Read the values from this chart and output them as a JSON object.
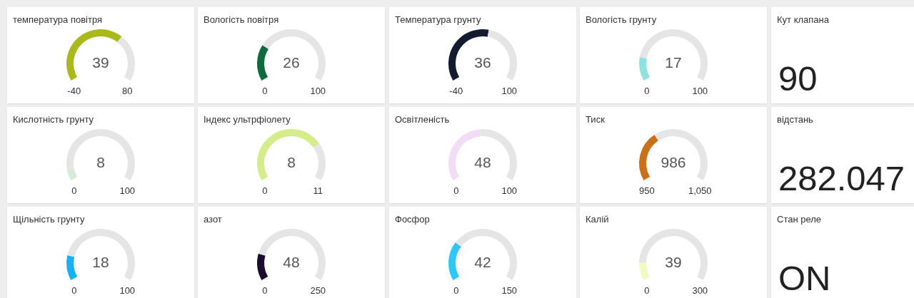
{
  "chart_data": [
    {
      "type": "donut",
      "title": "температура повітря",
      "categories": [
        null,
        null
      ],
      "values": [
        65.8,
        34.2
      ],
      "colors": [
        "#a9b91c",
        "#e5e5e5"
      ],
      "annotations": [
        "39",
        "-40",
        "80"
      ]
    },
    {
      "type": "donut",
      "title": "Вологість повітря",
      "categories": [
        null,
        null
      ],
      "values": [
        26,
        74
      ],
      "colors": [
        "#0e6b3b",
        "#e5e5e5"
      ],
      "annotations": [
        "26",
        "0",
        "100"
      ]
    },
    {
      "type": "donut",
      "title": "Температура грунту",
      "categories": [
        null,
        null
      ],
      "values": [
        54.3,
        45.7
      ],
      "colors": [
        "#141b2f",
        "#e5e5e5"
      ],
      "annotations": [
        "36",
        "-40",
        "100"
      ]
    },
    {
      "type": "donut",
      "title": "Вологість грунту",
      "categories": [
        null,
        null
      ],
      "values": [
        17,
        83
      ],
      "colors": [
        "#8fe0e0",
        "#e5e5e5"
      ],
      "annotations": [
        "17",
        "0",
        "100"
      ]
    },
    {
      "type": "other",
      "title": "Кут клапана",
      "annotations": [
        "90"
      ]
    },
    {
      "type": "donut",
      "title": "Кислотність грунту",
      "categories": [
        null,
        null
      ],
      "values": [
        8,
        92
      ],
      "colors": [
        "#d6ebd6",
        "#e5e5e5"
      ],
      "annotations": [
        "8",
        "0",
        "100"
      ]
    },
    {
      "type": "donut",
      "title": "Індекс ультрфіолету",
      "categories": [
        null,
        null
      ],
      "values": [
        72.7,
        27.3
      ],
      "colors": [
        "#d4ec8a",
        "#e5e5e5"
      ],
      "annotations": [
        "8",
        "0",
        "11"
      ]
    },
    {
      "type": "donut",
      "title": "Освітленість",
      "categories": [
        null,
        null
      ],
      "values": [
        48,
        52
      ],
      "colors": [
        "#f3ddf6",
        "#e5e5e5"
      ],
      "annotations": [
        "48",
        "0",
        "100"
      ]
    },
    {
      "type": "donut",
      "title": "Тиск",
      "categories": [
        null,
        null
      ],
      "values": [
        36,
        64
      ],
      "colors": [
        "#c8711a",
        "#e5e5e5"
      ],
      "annotations": [
        "986",
        "950",
        "1,050"
      ]
    },
    {
      "type": "other",
      "title": "відстань",
      "annotations": [
        "282.047"
      ]
    },
    {
      "type": "donut",
      "title": "Щільність грунту",
      "categories": [
        null,
        null
      ],
      "values": [
        18,
        82
      ],
      "colors": [
        "#14b2f2",
        "#e5e5e5"
      ],
      "annotations": [
        "18",
        "0",
        "100"
      ]
    },
    {
      "type": "donut",
      "title": "азот",
      "categories": [
        null,
        null
      ],
      "values": [
        19.2,
        80.8
      ],
      "colors": [
        "#1c0d30",
        "#e5e5e5"
      ],
      "annotations": [
        "48",
        "0",
        "250"
      ]
    },
    {
      "type": "donut",
      "title": "Фосфор",
      "categories": [
        null,
        null
      ],
      "values": [
        28,
        72
      ],
      "colors": [
        "#2ec7f7",
        "#e5e5e5"
      ],
      "annotations": [
        "42",
        "0",
        "150"
      ]
    },
    {
      "type": "donut",
      "title": "Калій",
      "categories": [
        null,
        null
      ],
      "values": [
        13,
        87
      ],
      "colors": [
        "#f0fbc2",
        "#e5e5e5"
      ],
      "annotations": [
        "39",
        "0",
        "300"
      ]
    },
    {
      "type": "other",
      "title": "Стан реле",
      "annotations": [
        "ON"
      ]
    }
  ]
}
